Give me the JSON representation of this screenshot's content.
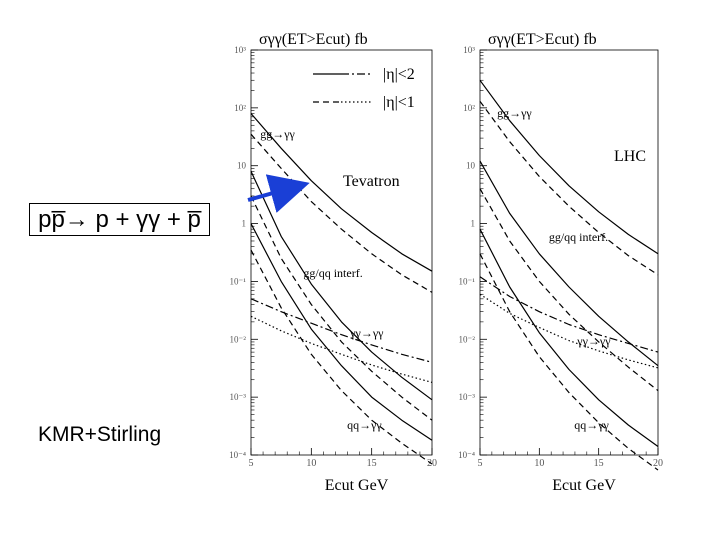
{
  "slide": {
    "process_label": "pp̅→ p + γγ + p̅",
    "credit_label": "KMR+Stirling"
  },
  "chart_data": [
    {
      "type": "line",
      "panel": "tevatron",
      "y_title": "σγγ(ET>Ecut) fb",
      "x_title": "Ecut GeV",
      "collider_label": "Tevatron",
      "log_y": true,
      "xlim": [
        5,
        20
      ],
      "ylim": [
        0.0001,
        1000
      ],
      "x_ticks": [
        5,
        10,
        15,
        20
      ],
      "x_tick_labels": [
        "5",
        "10",
        "15",
        "20"
      ],
      "y_ticks": [
        0.0001,
        0.001,
        0.01,
        0.1,
        1,
        10,
        100,
        1000
      ],
      "y_tick_labels": [
        "10⁻⁴",
        "10⁻³",
        "10⁻²",
        "10⁻¹",
        "1",
        "10",
        "10²",
        "10³"
      ],
      "legend": [
        {
          "style": "solid-dashdot",
          "label": "|η|<2"
        },
        {
          "style": "dashed-dotted",
          "label": "|η|<1"
        }
      ],
      "annotations": [
        {
          "text": "gg→γγ",
          "x": 7.2,
          "y": 30
        },
        {
          "text": "gg/qq interf.",
          "x": 11.8,
          "y": 0.12
        },
        {
          "text": "γγ→γγ",
          "x": 14.6,
          "y": 0.011
        },
        {
          "text": "qq→γγ",
          "x": 14.4,
          "y": 0.00028
        }
      ],
      "series": [
        {
          "component": "gg",
          "eta": "2",
          "style": "solid",
          "x": [
            5,
            7.5,
            10,
            12.5,
            15,
            17.5,
            20
          ],
          "y": [
            80,
            20,
            5.5,
            1.8,
            0.7,
            0.3,
            0.15
          ]
        },
        {
          "component": "gg",
          "eta": "1",
          "style": "dashed",
          "x": [
            5,
            7.5,
            10,
            12.5,
            15,
            17.5,
            20
          ],
          "y": [
            35,
            9,
            2.4,
            0.8,
            0.3,
            0.13,
            0.065
          ]
        },
        {
          "component": "interf",
          "eta": "2",
          "style": "solid",
          "x": [
            5,
            7.5,
            10,
            12.5,
            15,
            17.5,
            20
          ],
          "y": [
            8,
            0.6,
            0.09,
            0.02,
            0.006,
            0.0022,
            0.0009
          ]
        },
        {
          "component": "interf",
          "eta": "1",
          "style": "dashed",
          "x": [
            5,
            7.5,
            10,
            12.5,
            15,
            17.5,
            20
          ],
          "y": [
            3,
            0.25,
            0.04,
            0.009,
            0.0028,
            0.001,
            0.0004
          ]
        },
        {
          "component": "gamma",
          "eta": "2",
          "style": "dashdot",
          "x": [
            5,
            7.5,
            10,
            12.5,
            15,
            17.5,
            20
          ],
          "y": [
            0.05,
            0.03,
            0.019,
            0.012,
            0.008,
            0.0055,
            0.004
          ]
        },
        {
          "component": "gamma",
          "eta": "1",
          "style": "dotted",
          "x": [
            5,
            7.5,
            10,
            12.5,
            15,
            17.5,
            20
          ],
          "y": [
            0.025,
            0.014,
            0.0085,
            0.0055,
            0.0036,
            0.0025,
            0.0018
          ]
        },
        {
          "component": "qq",
          "eta": "2",
          "style": "solid",
          "x": [
            5,
            7.5,
            10,
            12.5,
            15,
            17.5,
            20
          ],
          "y": [
            1.0,
            0.1,
            0.015,
            0.0035,
            0.001,
            0.0004,
            0.00018
          ]
        },
        {
          "component": "qq",
          "eta": "1",
          "style": "dashed",
          "x": [
            5,
            7.5,
            10,
            12.5,
            15,
            17.5,
            20
          ],
          "y": [
            0.35,
            0.035,
            0.0055,
            0.0013,
            0.0004,
            0.00016,
            7e-05
          ]
        }
      ]
    },
    {
      "type": "line",
      "panel": "lhc",
      "y_title": "σγγ(ET>Ecut) fb",
      "x_title": "Ecut GeV",
      "collider_label": "LHC",
      "log_y": true,
      "xlim": [
        5,
        20
      ],
      "ylim": [
        0.0001,
        1000
      ],
      "x_ticks": [
        5,
        10,
        15,
        20
      ],
      "x_tick_labels": [
        "5",
        "10",
        "15",
        "20"
      ],
      "y_ticks": [
        0.0001,
        0.001,
        0.01,
        0.1,
        1,
        10,
        100,
        1000
      ],
      "y_tick_labels": [
        "10⁻⁴",
        "10⁻³",
        "10⁻²",
        "10⁻¹",
        "1",
        "10",
        "10²",
        "10³"
      ],
      "annotations": [
        {
          "text": "gg→γγ",
          "x": 7.9,
          "y": 70
        },
        {
          "text": "gg/qq interf.",
          "x": 13.3,
          "y": 0.5
        },
        {
          "text": "γγ→γγ",
          "x": 14.6,
          "y": 0.008
        },
        {
          "text": "qq→γγ",
          "x": 14.4,
          "y": 0.00028
        }
      ],
      "series": [
        {
          "component": "gg",
          "eta": "2",
          "style": "solid",
          "x": [
            5,
            7.5,
            10,
            12.5,
            15,
            17.5,
            20
          ],
          "y": [
            300,
            60,
            15,
            4.5,
            1.6,
            0.65,
            0.3
          ]
        },
        {
          "component": "gg",
          "eta": "1",
          "style": "dashed",
          "x": [
            5,
            7.5,
            10,
            12.5,
            15,
            17.5,
            20
          ],
          "y": [
            130,
            26,
            6.5,
            2,
            0.7,
            0.28,
            0.13
          ]
        },
        {
          "component": "interf",
          "eta": "2",
          "style": "solid",
          "x": [
            5,
            7.5,
            10,
            12.5,
            15,
            17.5,
            20
          ],
          "y": [
            12,
            1.5,
            0.3,
            0.08,
            0.025,
            0.009,
            0.0035
          ]
        },
        {
          "component": "interf",
          "eta": "1",
          "style": "dashed",
          "x": [
            5,
            7.5,
            10,
            12.5,
            15,
            17.5,
            20
          ],
          "y": [
            4,
            0.5,
            0.1,
            0.027,
            0.009,
            0.0033,
            0.0013
          ]
        },
        {
          "component": "gamma",
          "eta": "2",
          "style": "dashdot",
          "x": [
            5,
            7.5,
            10,
            12.5,
            15,
            17.5,
            20
          ],
          "y": [
            0.12,
            0.055,
            0.03,
            0.018,
            0.012,
            0.0085,
            0.006
          ]
        },
        {
          "component": "gamma",
          "eta": "1",
          "style": "dotted",
          "x": [
            5,
            7.5,
            10,
            12.5,
            15,
            17.5,
            20
          ],
          "y": [
            0.06,
            0.028,
            0.016,
            0.0095,
            0.0063,
            0.0044,
            0.0032
          ]
        },
        {
          "component": "qq",
          "eta": "2",
          "style": "solid",
          "x": [
            5,
            7.5,
            10,
            12.5,
            15,
            17.5,
            20
          ],
          "y": [
            0.8,
            0.08,
            0.013,
            0.003,
            0.0009,
            0.00033,
            0.00014
          ]
        },
        {
          "component": "qq",
          "eta": "1",
          "style": "dashed",
          "x": [
            5,
            7.5,
            10,
            12.5,
            15,
            17.5,
            20
          ],
          "y": [
            0.3,
            0.03,
            0.005,
            0.0012,
            0.00036,
            0.00013,
            5.5e-05
          ]
        }
      ]
    }
  ]
}
